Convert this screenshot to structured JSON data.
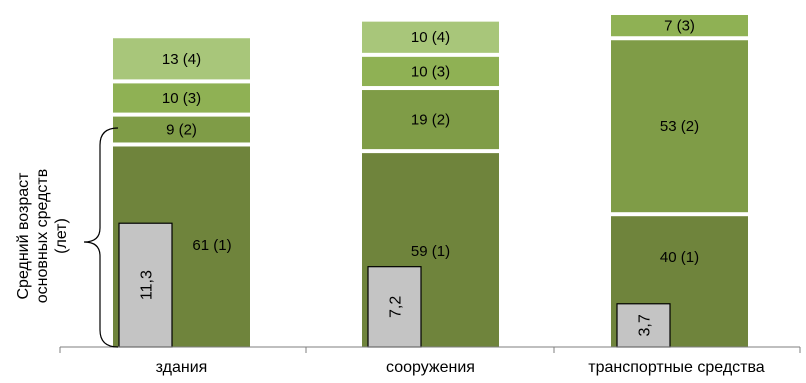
{
  "chart_data": {
    "type": "bar",
    "stacked": true,
    "categories": [
      "здания",
      "сооружения",
      "транспортные средства"
    ],
    "segments": [
      [
        {
          "value": 61,
          "group": 1,
          "label": "61 (1)"
        },
        {
          "value": 9,
          "group": 2,
          "label": "9 (2)"
        },
        {
          "value": 10,
          "group": 3,
          "label": "10 (3)"
        },
        {
          "value": 13,
          "group": 4,
          "label": "13 (4)"
        }
      ],
      [
        {
          "value": 59,
          "group": 1,
          "label": "59 (1)"
        },
        {
          "value": 19,
          "group": 2,
          "label": "19 (2)"
        },
        {
          "value": 10,
          "group": 3,
          "label": "10 (3)"
        },
        {
          "value": 10,
          "group": 4,
          "label": "10 (4)"
        }
      ],
      [
        {
          "value": 40,
          "group": 1,
          "label": "40 (1)"
        },
        {
          "value": 53,
          "group": 2,
          "label": "53 (2)"
        },
        {
          "value": 7,
          "group": 3,
          "label": "7 (3)"
        }
      ]
    ],
    "average_age": {
      "values": [
        11.3,
        7.2,
        3.7
      ],
      "labels": [
        "11,3",
        "7,2",
        "3,7"
      ]
    },
    "ylabel": "Средний возраст основных средств (лет)",
    "ylabel_lines": [
      "Средний  возраст",
      "основных средств",
      "(лет)"
    ],
    "colors": {
      "1": "#6f843c",
      "2": "#7f9c47",
      "3": "#8fb154",
      "4": "#a8c67a",
      "age_box": "#c4c4c4",
      "axis": "#7f7f7f"
    }
  }
}
